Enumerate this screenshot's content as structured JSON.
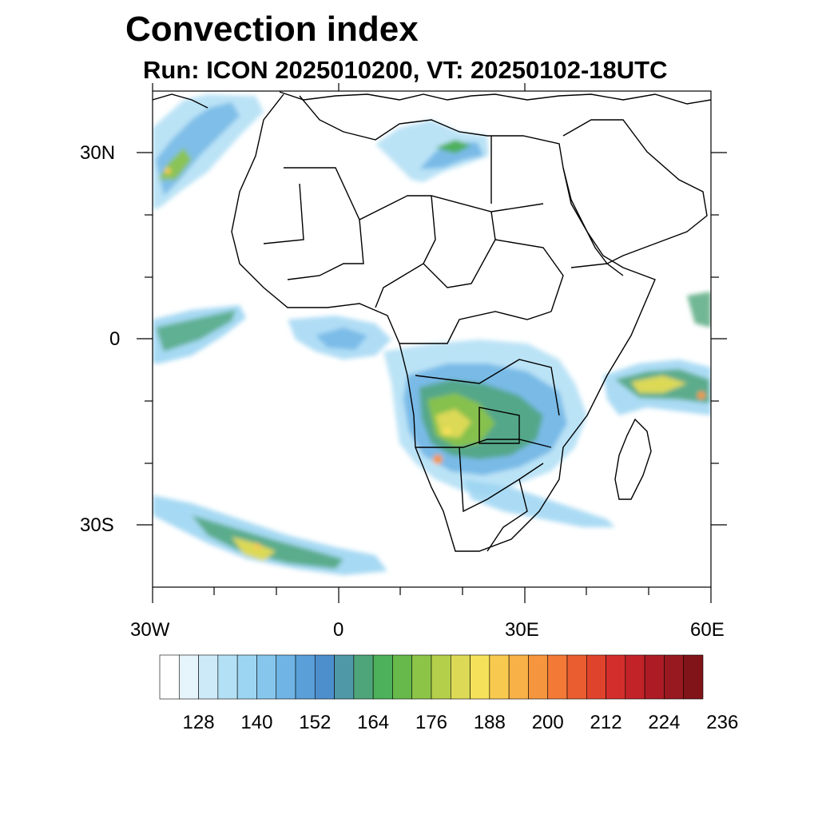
{
  "title": "Convection index",
  "subtitle": "Run: ICON 2025010200,  VT: 20250102-18UTC",
  "map": {
    "lon_range": [
      -30,
      60
    ],
    "lat_range": [
      -40,
      40
    ],
    "lat_labels": [
      "30N",
      "0",
      "30S"
    ],
    "lon_labels": [
      "30W",
      "0",
      "30E",
      "60E"
    ]
  },
  "colorbar": {
    "colors": [
      "#ffffff",
      "#e6f4fc",
      "#cdeaf8",
      "#b4e0f5",
      "#9cd5f2",
      "#86c6ec",
      "#6fb4e5",
      "#5a9fd8",
      "#4d8fcc",
      "#4f98a8",
      "#4fa57a",
      "#4db05a",
      "#66b94a",
      "#8cc447",
      "#b4cf4a",
      "#dcd957",
      "#f6e15a",
      "#f8c94f",
      "#f7b146",
      "#f5953d",
      "#f27936",
      "#ea5d30",
      "#e0432c",
      "#d42e2c",
      "#c22328",
      "#ad1c24",
      "#981920",
      "#801419"
    ],
    "tick_labels": [
      "128",
      "140",
      "152",
      "164",
      "176",
      "188",
      "200",
      "212",
      "224",
      "236"
    ]
  }
}
